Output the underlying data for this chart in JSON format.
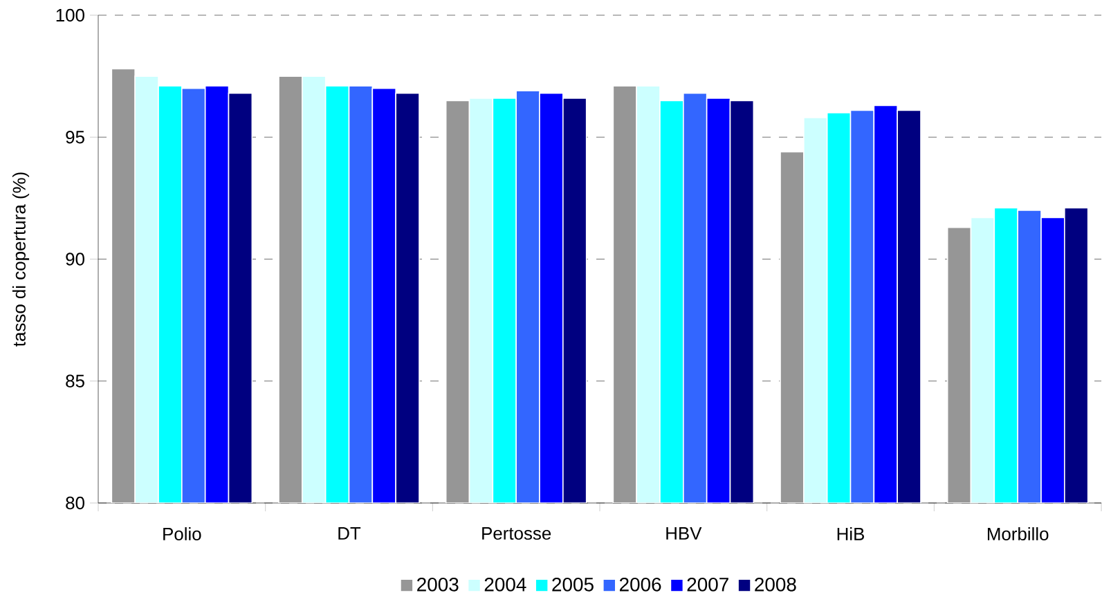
{
  "chart_data": {
    "type": "bar",
    "ylabel": "tasso di copertura (%)",
    "categories": [
      "Polio",
      "DT",
      "Pertosse",
      "HBV",
      "HiB",
      "Morbillo"
    ],
    "series": [
      {
        "name": "2003",
        "color": "#969696",
        "values": [
          97.8,
          97.5,
          96.5,
          97.1,
          94.4,
          91.3
        ]
      },
      {
        "name": "2004",
        "color": "#ccffff",
        "values": [
          97.5,
          97.5,
          96.6,
          97.1,
          95.8,
          91.7
        ]
      },
      {
        "name": "2005",
        "color": "#00ffff",
        "values": [
          97.1,
          97.1,
          96.6,
          96.5,
          96.0,
          92.1
        ]
      },
      {
        "name": "2006",
        "color": "#3366ff",
        "values": [
          97.0,
          97.1,
          96.9,
          96.8,
          96.1,
          92.0
        ]
      },
      {
        "name": "2007",
        "color": "#0000ff",
        "values": [
          97.1,
          97.0,
          96.8,
          96.6,
          96.3,
          91.7
        ]
      },
      {
        "name": "2008",
        "color": "#000080",
        "values": [
          96.8,
          96.8,
          96.6,
          96.5,
          96.1,
          92.1
        ]
      }
    ],
    "ylim": [
      80,
      100
    ],
    "yticks": [
      80,
      85,
      90,
      95,
      100
    ],
    "grid": "y",
    "legend": "bottom"
  }
}
